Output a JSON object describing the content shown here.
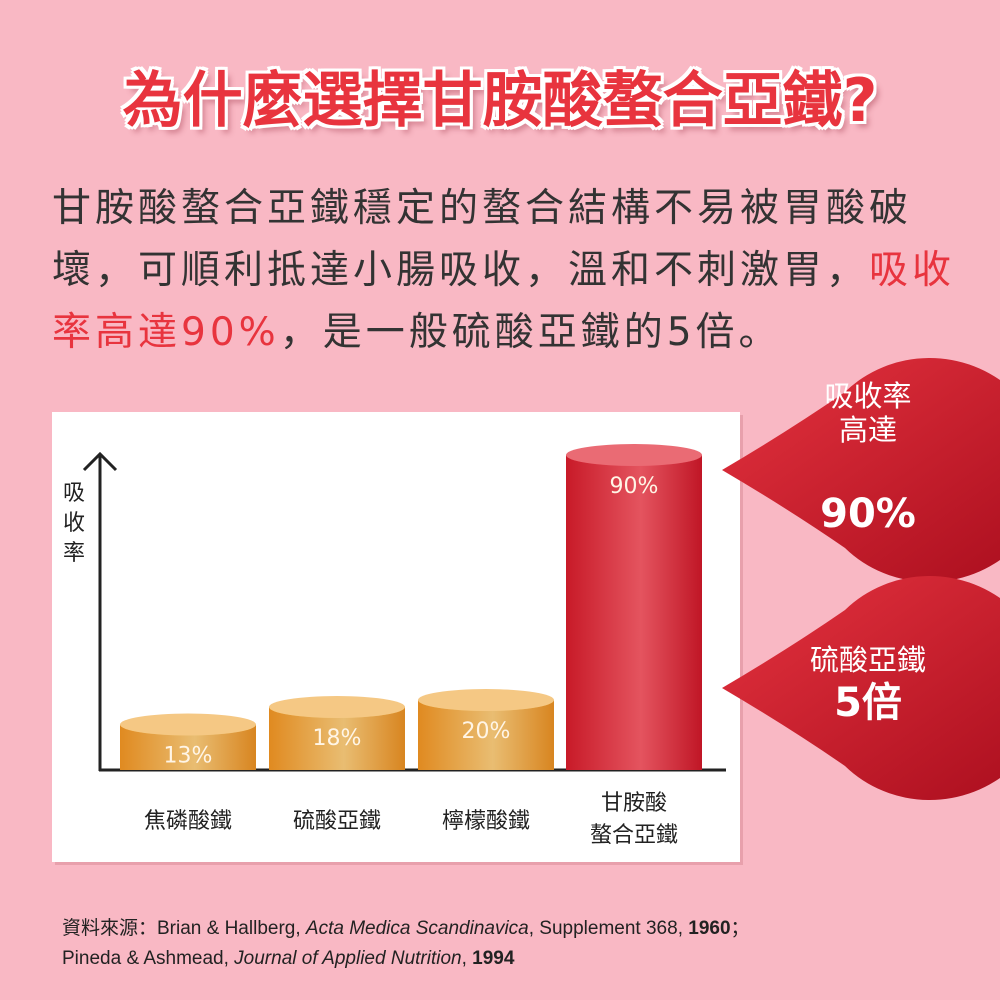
{
  "headline": "為什麼選擇甘胺酸螯合亞鐵?",
  "body": [
    {
      "text": "甘胺酸螯合亞鐵穩定的螯合結構不易被胃酸破壞，可順利抵達小腸吸收，溫和不刺激胃，",
      "color": "#333333"
    },
    {
      "text": "吸收率高達90%",
      "color": "#e8343e"
    },
    {
      "text": "，是一般硫酸亞鐵的5倍。",
      "color": "#333333"
    }
  ],
  "callouts": [
    {
      "lines": [
        "吸收率",
        "高達"
      ],
      "value": "90%"
    },
    {
      "lines": [
        "硫酸亞鐵"
      ],
      "value": "5倍"
    }
  ],
  "source": [
    [
      {
        "text": "資料來源：Brian & Hallberg, ",
        "style": "normal"
      },
      {
        "text": "Acta Medica Scandinavica",
        "style": "italic"
      },
      {
        "text": ", Supplement 368, ",
        "style": "normal"
      },
      {
        "text": "1960",
        "style": "bold"
      },
      {
        "text": "；",
        "style": "normal"
      }
    ],
    [
      {
        "text": "Pineda & Ashmead, ",
        "style": "normal"
      },
      {
        "text": "Journal of Applied Nutrition",
        "style": "italic"
      },
      {
        "text": ", ",
        "style": "normal"
      },
      {
        "text": "1994",
        "style": "bold"
      }
    ]
  ],
  "chart_data": {
    "type": "bar",
    "y_label": "吸收率",
    "categories": [
      "焦磷酸鐵",
      "硫酸亞鐵",
      "檸檬酸鐵",
      "甘胺酸\n螯合亞鐵"
    ],
    "values": [
      13,
      18,
      20,
      90
    ],
    "value_labels": [
      "13%",
      "18%",
      "20%",
      "90%"
    ],
    "colors": [
      "#e39a35",
      "#e39a35",
      "#e39a35",
      "#d8232f"
    ],
    "ylim": [
      0,
      100
    ]
  }
}
